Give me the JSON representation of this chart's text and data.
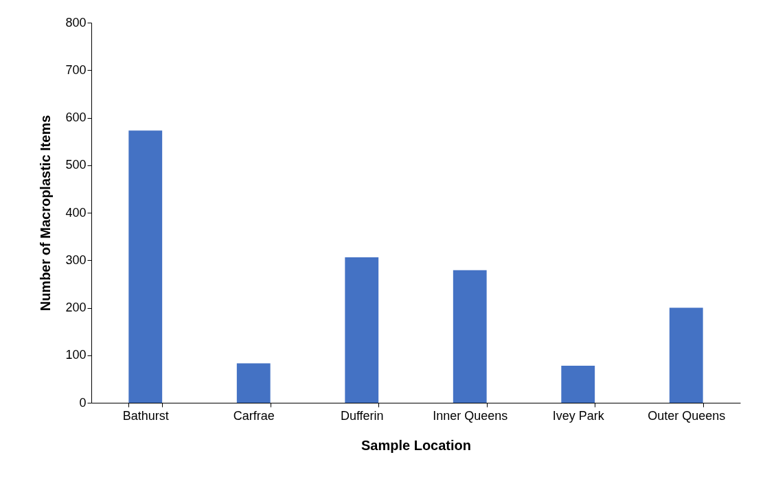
{
  "chart_data": {
    "type": "bar",
    "xlabel": "Sample Location",
    "ylabel": "Number of Macroplastic Items",
    "categories": [
      "Bathurst",
      "Carfrae",
      "Dufferin",
      "Inner Queens",
      "Ivey Park",
      "Outer Queens"
    ],
    "values": [
      573,
      83,
      306,
      279,
      78,
      200
    ],
    "color": "#4472c4",
    "ylim": [
      0,
      800
    ],
    "yticks": [
      0,
      100,
      200,
      300,
      400,
      500,
      600,
      700,
      800
    ],
    "grid": false
  }
}
